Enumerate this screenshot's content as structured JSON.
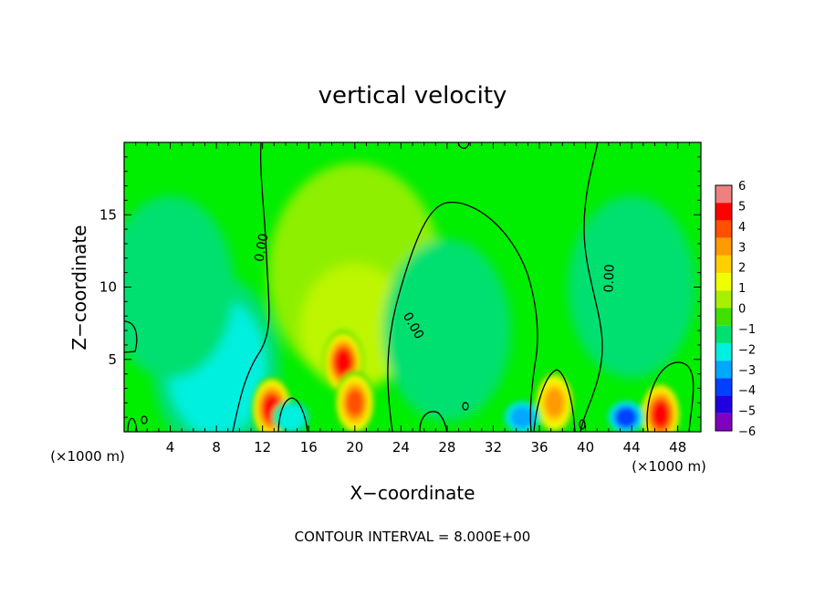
{
  "chart_data": {
    "type": "heatmap",
    "title": "vertical velocity",
    "xlabel": "X−coordinate",
    "ylabel": "Z−coordinate",
    "x_unit": "(×1000 m)",
    "x_unit_right": "(×1000 m)",
    "footer": "CONTOUR INTERVAL = 8.000E+00",
    "xlim": [
      0,
      50
    ],
    "ylim": [
      0,
      20
    ],
    "x_ticks": [
      4,
      8,
      12,
      16,
      20,
      24,
      28,
      32,
      36,
      40,
      44,
      48
    ],
    "x_tick_labels": [
      "4",
      "8",
      "12",
      "16",
      "20",
      "24",
      "28",
      "32",
      "36",
      "40",
      "44",
      "48"
    ],
    "y_ticks": [
      5,
      10,
      15
    ],
    "y_tick_labels": [
      "5",
      "10",
      "15"
    ],
    "colorbar": {
      "levels": [
        -6,
        -5,
        -4,
        -3,
        -2,
        -1,
        0,
        1,
        2,
        3,
        4,
        5,
        6
      ],
      "labels": [
        "6",
        "5",
        "4",
        "3",
        "2",
        "1",
        "0",
        "−1",
        "−2",
        "−3",
        "−4",
        "−5",
        "−6"
      ],
      "colors": [
        "#f08080",
        "#ff0000",
        "#ff5000",
        "#ff9a00",
        "#ffd000",
        "#f0ff00",
        "#a8f000",
        "#40e000",
        "#00e070",
        "#00f0e0",
        "#00a8ff",
        "#0040ff",
        "#2000e0",
        "#8000c0"
      ]
    },
    "contour_labels": [
      "0.00",
      "0.00",
      "0.00",
      "0.00"
    ],
    "features": [
      {
        "kind": "updraft",
        "x": 12.8,
        "z": 1.6,
        "value": 4.5
      },
      {
        "kind": "updraft",
        "x": 19.0,
        "z": 4.8,
        "value": 4.5
      },
      {
        "kind": "updraft",
        "x": 20.0,
        "z": 2.0,
        "value": 4.0
      },
      {
        "kind": "updraft",
        "x": 37.3,
        "z": 2.0,
        "value": 3.0
      },
      {
        "kind": "updraft",
        "x": 46.5,
        "z": 1.2,
        "value": 4.5
      },
      {
        "kind": "updraft",
        "x": 20.0,
        "z": 11.0,
        "value": 0.8
      },
      {
        "kind": "downdraft",
        "x": 8.0,
        "z": 4.5,
        "value": -1.8
      },
      {
        "kind": "downdraft",
        "x": 14.5,
        "z": 1.0,
        "value": -2.0
      },
      {
        "kind": "downdraft",
        "x": 34.5,
        "z": 1.0,
        "value": -3.0
      },
      {
        "kind": "downdraft",
        "x": 43.5,
        "z": 1.0,
        "value": -3.5
      },
      {
        "kind": "downdraft",
        "x": 28.0,
        "z": 7.0,
        "value": -0.8
      },
      {
        "kind": "downdraft",
        "x": 4.0,
        "z": 10.0,
        "value": -0.6
      },
      {
        "kind": "downdraft",
        "x": 44.0,
        "z": 10.0,
        "value": -0.6
      }
    ]
  }
}
